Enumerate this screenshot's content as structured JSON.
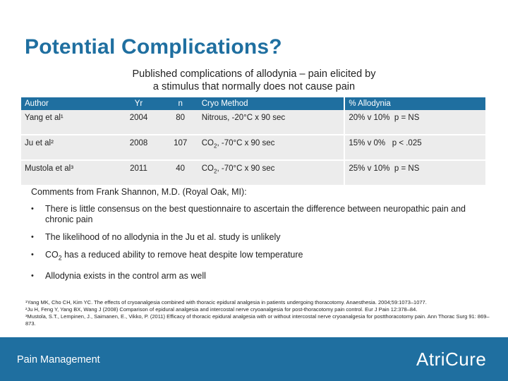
{
  "title": "Potential Complications?",
  "subtitle": {
    "line1": "Published complications of allodynia – pain elicited by",
    "line2": "a stimulus that normally does not cause pain"
  },
  "table": {
    "headers": {
      "author": "Author",
      "yr": "Yr",
      "n": "n",
      "cryo": "Cryo Method",
      "allodynia": "% Allodynia"
    },
    "rows": [
      {
        "author": "Yang et al¹",
        "yr": "2004",
        "n": "80",
        "cryo": "Nitrous, -20°C x 90 sec",
        "allodynia": "20% v 10%  p = NS"
      },
      {
        "author": "Ju et al²",
        "yr": "2008",
        "n": "107",
        "cryo_pre": "CO",
        "cryo_sub": "2",
        "cryo_post": ", -70°C x 90 sec",
        "allodynia": "15% v 0%   p < .025"
      },
      {
        "author": "Mustola et al³",
        "yr": "2011",
        "n": "40",
        "cryo_pre": "CO",
        "cryo_sub": "2",
        "cryo_post": ", -70°C x 90 sec",
        "allodynia": "25% v 10%  p = NS"
      }
    ]
  },
  "comments_heading": "Comments from Frank Shannon, M.D. (Royal Oak, MI):",
  "bullets": [
    "There is little consensus on the best questionnaire to ascertain the difference between neuropathic pain and chronic pain",
    "The likelihood of no allodynia in the Ju et al. study is unlikely",
    {
      "pre": "CO",
      "sub": "2",
      "post": " has a reduced ability to remove heat despite low temperature"
    },
    "Allodynia exists in the control arm as well"
  ],
  "references": [
    "¹Yang MK, Cho CH, Kim YC. The effects of cryoanalgesia combined with thoracic epidural analgesia in patients undergoing thoracotomy. Anaesthesia. 2004;59:1073–1077.",
    "²Ju H, Feng Y, Yang BX, Wang J (2008) Comparison of epidural analgesia and intercostal nerve cryoanalgesia for post-thoracotomy pain control. Eur J Pain 12:378–84.",
    "³Mustola, S.T., Lempinen, J., Saimanen, E., Vikko, P. (2011) Efficacy of thoracic epidural analgesia with or without intercostal nerve cryoanalgesia for postthoracotomy pain. Ann Thorac Surg 91: 869–873."
  ],
  "footer": {
    "label": "Pain Management",
    "logo": "AtriCure"
  },
  "colors": {
    "accent": "#1f6fa0",
    "row_bg": "#ececec"
  }
}
